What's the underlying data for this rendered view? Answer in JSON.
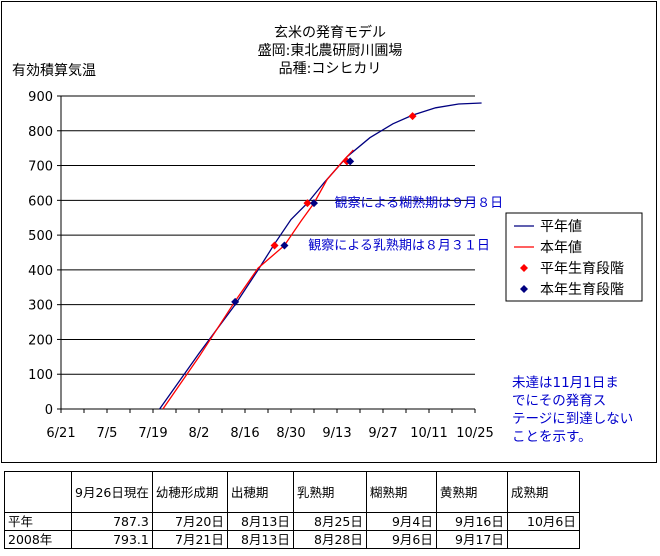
{
  "chart_data": {
    "type": "line",
    "title_lines": [
      "玄米の発育モデル",
      "盛岡:東北農研厨川圃場",
      "品種:コシヒカリ"
    ],
    "ylabel": "有効積算気温",
    "ylim": [
      0,
      900
    ],
    "yticks": [
      0,
      100,
      200,
      300,
      400,
      500,
      600,
      700,
      800,
      900
    ],
    "xlim": [
      "6/21",
      "10/25"
    ],
    "xticks": [
      "6/21",
      "7/5",
      "7/19",
      "8/2",
      "8/16",
      "8/30",
      "9/13",
      "9/27",
      "10/11",
      "10/25"
    ],
    "grid": "horizontal",
    "legend_position": "right",
    "colors": {
      "normal_line": "#000080",
      "current_line": "#ff0000",
      "normal_stage": "#ff0000",
      "current_stage": "#000080",
      "annotation": "#0000cc"
    },
    "series": [
      {
        "name": "平年値",
        "points": [
          [
            "7/21",
            0
          ],
          [
            "8/2",
            160
          ],
          [
            "8/13",
            300
          ],
          [
            "8/20",
            400
          ],
          [
            "8/25",
            475
          ],
          [
            "8/30",
            545
          ],
          [
            "9/4",
            592
          ],
          [
            "9/9",
            650
          ],
          [
            "9/16",
            725
          ],
          [
            "9/23",
            780
          ],
          [
            "9/30",
            820
          ],
          [
            "10/6",
            845
          ],
          [
            "10/13",
            866
          ],
          [
            "10/20",
            877
          ],
          [
            "10/27",
            880
          ]
        ]
      },
      {
        "name": "本年値",
        "points": [
          [
            "7/22",
            0
          ],
          [
            "8/2",
            150
          ],
          [
            "8/13",
            310
          ],
          [
            "8/20",
            405
          ],
          [
            "8/28",
            470
          ],
          [
            "9/2",
            540
          ],
          [
            "9/6",
            592
          ],
          [
            "9/10",
            660
          ],
          [
            "9/15",
            715
          ],
          [
            "9/18",
            745
          ]
        ]
      },
      {
        "name": "平年生育段階",
        "points": [
          [
            "8/25",
            470
          ],
          [
            "9/4",
            592
          ],
          [
            "9/16",
            712
          ],
          [
            "10/6",
            842
          ]
        ]
      },
      {
        "name": "本年生育段階",
        "points": [
          [
            "8/13",
            308
          ],
          [
            "8/28",
            470
          ],
          [
            "9/6",
            592
          ],
          [
            "9/17",
            712
          ]
        ]
      }
    ],
    "annotations": [
      {
        "text": "観察による糊熟期は９月８日",
        "x": "9/8",
        "y": 592
      },
      {
        "text": "観察による乳熟期は８月３１日",
        "x": "8/31",
        "y": 470
      }
    ],
    "note_lines": [
      "未達は11月1日ま",
      "でにその発育ス",
      "テージに到達しない",
      "ことを示す。"
    ]
  },
  "table": {
    "headers": [
      "",
      "9月26日現在",
      "幼穂形成期",
      "出穂期",
      "乳熟期",
      "糊熟期",
      "黄熟期",
      "成熟期"
    ],
    "rows": [
      [
        "平年",
        "787.3",
        "7月20日",
        "8月13日",
        "8月25日",
        "9月4日",
        "9月16日",
        "10月6日"
      ],
      [
        "2008年",
        "793.1",
        "7月21日",
        "8月13日",
        "8月28日",
        "9月6日",
        "9月17日",
        ""
      ]
    ]
  }
}
